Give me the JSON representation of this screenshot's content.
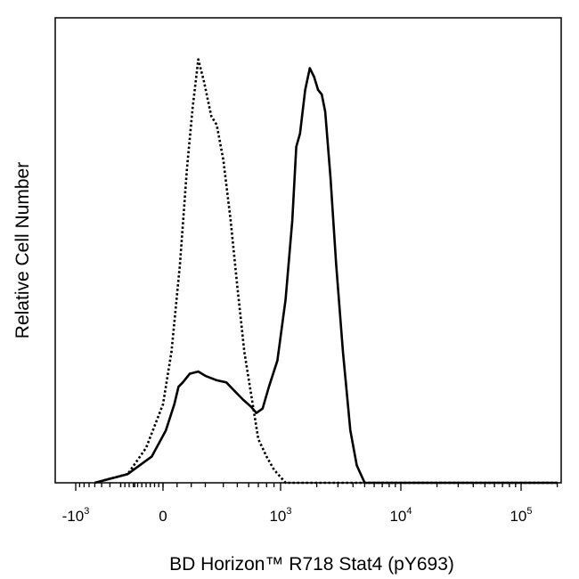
{
  "chart_data": {
    "type": "line",
    "title": "",
    "xlabel": "BD Horizon™ R718 Stat4 (pY693)",
    "ylabel": "Relative Cell Number",
    "x_scale": "biexponential",
    "xlim": [
      -2000,
      200000
    ],
    "ylim": [
      0,
      1.0
    ],
    "grid": false,
    "legend": "none",
    "x_tick_labels": [
      {
        "value": -1000,
        "base": "-10",
        "exp": "3"
      },
      {
        "value": 0,
        "base": "0",
        "exp": ""
      },
      {
        "value": 1000,
        "base": "10",
        "exp": "3"
      },
      {
        "value": 10000,
        "base": "10",
        "exp": "4"
      },
      {
        "value": 100000,
        "base": "10",
        "exp": "5"
      }
    ],
    "series": [
      {
        "style": "dotted",
        "color": "#000000",
        "points": [
          [
            -600,
            0.0
          ],
          [
            -250,
            0.02
          ],
          [
            -120,
            0.08
          ],
          [
            0,
            0.18
          ],
          [
            60,
            0.3
          ],
          [
            120,
            0.5
          ],
          [
            170,
            0.72
          ],
          [
            210,
            0.86
          ],
          [
            250,
            0.97
          ],
          [
            290,
            0.92
          ],
          [
            330,
            0.84
          ],
          [
            360,
            0.82
          ],
          [
            400,
            0.74
          ],
          [
            450,
            0.6
          ],
          [
            500,
            0.45
          ],
          [
            560,
            0.3
          ],
          [
            640,
            0.18
          ],
          [
            700,
            0.1
          ],
          [
            800,
            0.06
          ],
          [
            900,
            0.03
          ],
          [
            1100,
            0.0
          ],
          [
            200000,
            0.0
          ]
        ]
      },
      {
        "style": "solid",
        "color": "#000000",
        "points": [
          [
            -600,
            0.0
          ],
          [
            -250,
            0.02
          ],
          [
            -80,
            0.06
          ],
          [
            20,
            0.12
          ],
          [
            80,
            0.18
          ],
          [
            110,
            0.22
          ],
          [
            140,
            0.23
          ],
          [
            190,
            0.25
          ],
          [
            250,
            0.255
          ],
          [
            300,
            0.245
          ],
          [
            360,
            0.235
          ],
          [
            420,
            0.23
          ],
          [
            480,
            0.21
          ],
          [
            550,
            0.19
          ],
          [
            620,
            0.175
          ],
          [
            680,
            0.16
          ],
          [
            750,
            0.17
          ],
          [
            830,
            0.22
          ],
          [
            950,
            0.28
          ],
          [
            1100,
            0.42
          ],
          [
            1250,
            0.6
          ],
          [
            1350,
            0.77
          ],
          [
            1450,
            0.8
          ],
          [
            1600,
            0.9
          ],
          [
            1750,
            0.95
          ],
          [
            1900,
            0.93
          ],
          [
            2050,
            0.9
          ],
          [
            2200,
            0.89
          ],
          [
            2350,
            0.85
          ],
          [
            2600,
            0.7
          ],
          [
            2900,
            0.5
          ],
          [
            3300,
            0.3
          ],
          [
            3800,
            0.12
          ],
          [
            4300,
            0.04
          ],
          [
            5000,
            0.0
          ],
          [
            200000,
            0.0
          ]
        ]
      }
    ]
  }
}
